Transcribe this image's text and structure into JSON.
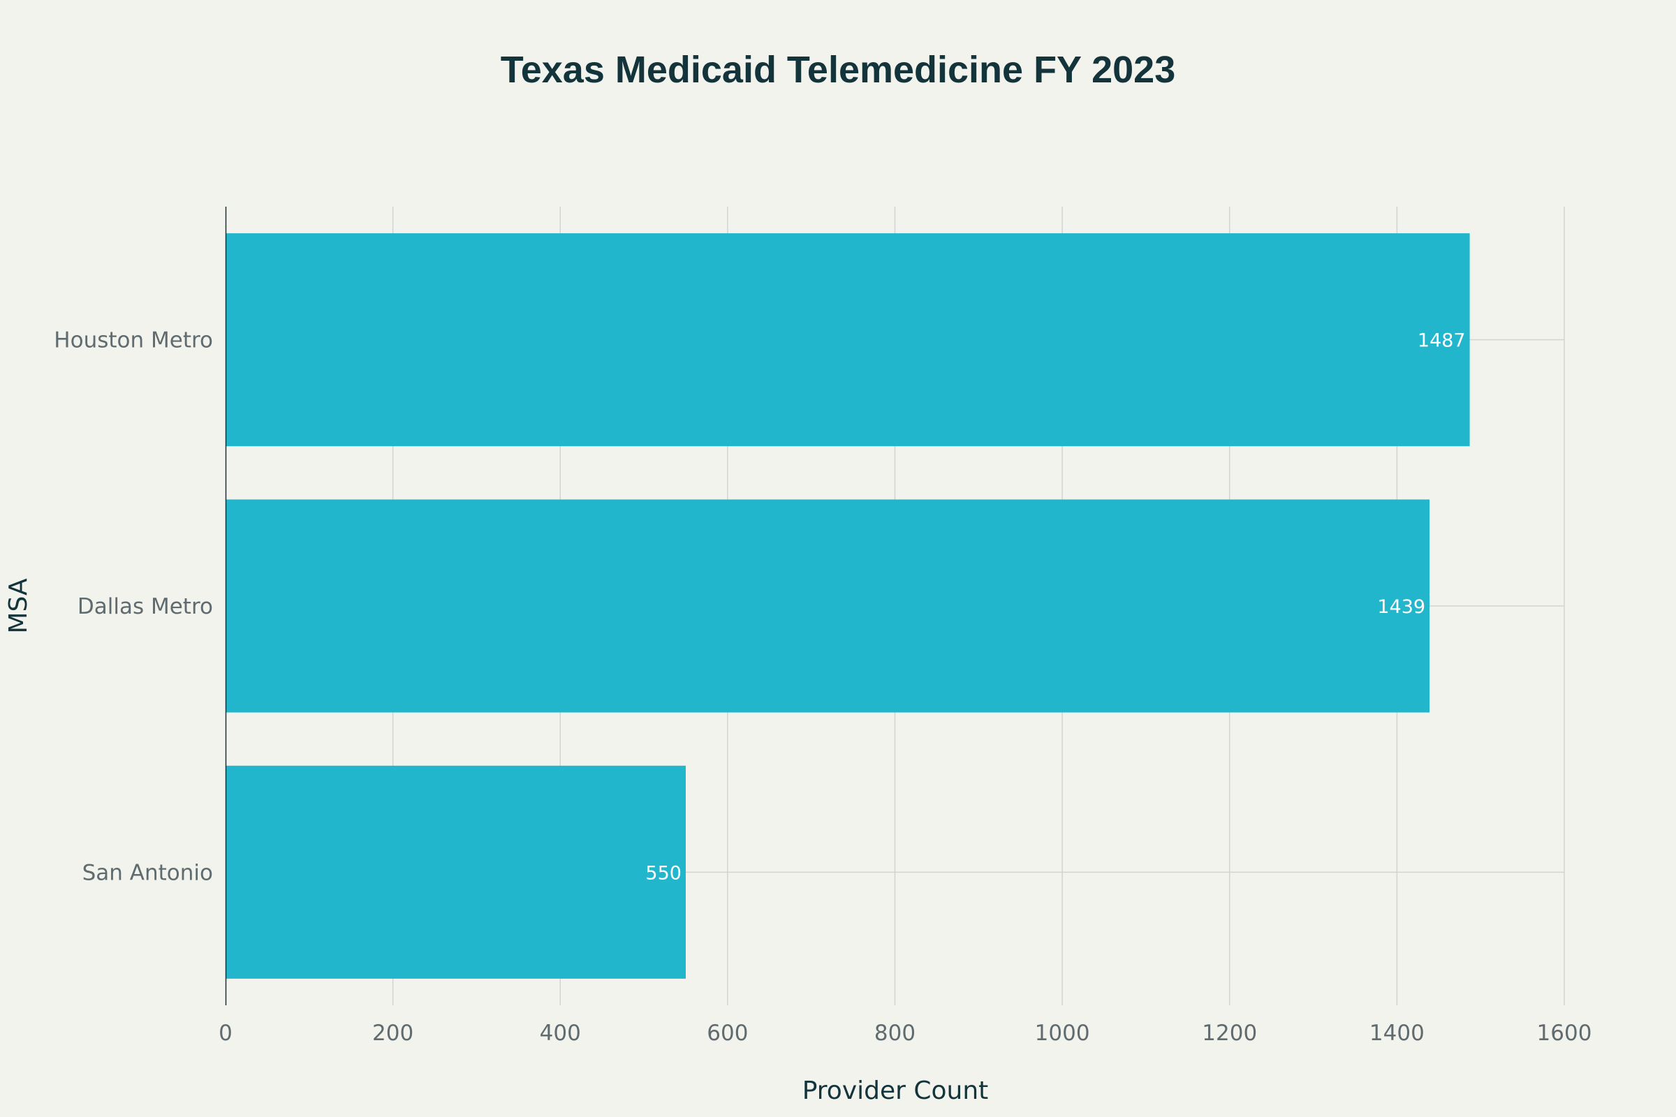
{
  "chart_data": {
    "type": "bar",
    "orientation": "horizontal",
    "title": "Texas Medicaid Telemedicine FY 2023",
    "xlabel": "Provider Count",
    "ylabel": "MSA",
    "categories": [
      "Houston Metro",
      "Dallas Metro",
      "San Antonio"
    ],
    "values": [
      1487,
      1439,
      550
    ],
    "data_labels": [
      "1487",
      "1439",
      "550"
    ],
    "xlim": [
      0,
      1600
    ],
    "x_ticks": [
      0,
      200,
      400,
      600,
      800,
      1000,
      1200,
      1400,
      1600
    ],
    "grid": true,
    "legend": "none",
    "colors": {
      "bar": "#21b6cc",
      "background": "#f3f3ee",
      "grid": "#d2d4d1",
      "axis_line": "#13343b",
      "title": "#13343b",
      "tick_text": "#5f6b6e",
      "label_text": "#ffffff"
    }
  }
}
